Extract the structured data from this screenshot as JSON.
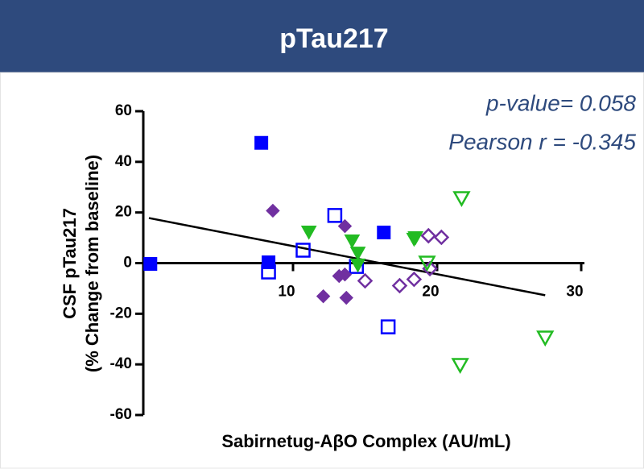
{
  "chart_data": {
    "type": "scatter",
    "title": "pTau217",
    "x_label": "Sabirnetug-AβO Complex (AU/mL)",
    "y_label": [
      "CSF pTau217",
      "(% Change from baseline)"
    ],
    "annotations": [
      "p-value= 0.058",
      "Pearson r = -0.345"
    ],
    "xlim": [
      0,
      30
    ],
    "xticks": [
      10,
      20,
      30
    ],
    "ylim": [
      -60,
      60
    ],
    "yticks": [
      60,
      40,
      20,
      0,
      -20,
      -40,
      -60
    ],
    "trendline": {
      "x": [
        0,
        27.5
      ],
      "y": [
        17.8,
        -12.7
      ]
    },
    "series": [
      {
        "color": "#0000ff",
        "marker": "square",
        "filled": true,
        "x": [
          0.1,
          7.8,
          8.3,
          16.3
        ],
        "values": [
          -0.3,
          47.5,
          0.3,
          12.1
        ]
      },
      {
        "color": "#0000ff",
        "marker": "square",
        "filled": false,
        "x": [
          8.3,
          10.7,
          12.9,
          14.4,
          16.6
        ],
        "values": [
          -3.5,
          5.1,
          18.8,
          -1.3,
          -25.2
        ]
      },
      {
        "color": "#7030a0",
        "marker": "diamond",
        "filled": true,
        "x": [
          8.6,
          12.1,
          13.6,
          13.2,
          13.6,
          13.7
        ],
        "values": [
          20.7,
          -13.1,
          14.6,
          -5.1,
          -4.5,
          -13.7
        ]
      },
      {
        "color": "#7030a0",
        "marker": "diamond",
        "filled": false,
        "x": [
          15.0,
          17.4,
          18.4,
          19.5,
          19.4,
          20.3
        ],
        "values": [
          -7.0,
          -8.9,
          -6.4,
          -2.2,
          10.8,
          10.2
        ]
      },
      {
        "color": "#22bb22",
        "marker": "triangle",
        "filled": true,
        "x": [
          11.1,
          14.1,
          14.5,
          14.5,
          18.4,
          18.5
        ],
        "values": [
          12.4,
          8.9,
          4.1,
          -0.6,
          9.6,
          10.2
        ]
      },
      {
        "color": "#22bb22",
        "marker": "triangle",
        "filled": false,
        "x": [
          21.7,
          19.3,
          21.6,
          27.5
        ],
        "values": [
          25.8,
          0.3,
          -40.1,
          -29.3
        ]
      }
    ]
  }
}
